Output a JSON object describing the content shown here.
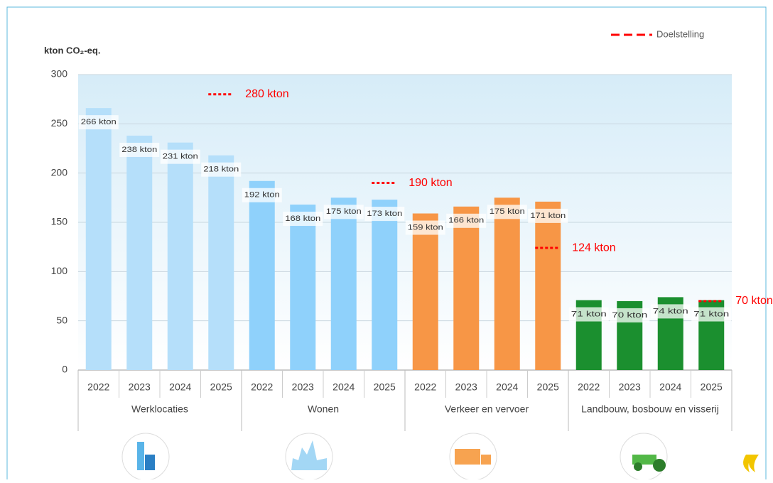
{
  "chart_data": {
    "type": "bar",
    "y_axis_title": "kton CO₂-eq.",
    "legend_label": "Doelstelling",
    "target_color": "#ff0000",
    "categories": [
      "2022",
      "2023",
      "2024",
      "2025"
    ],
    "ylim": [
      0,
      300
    ],
    "yticks": [
      0,
      50,
      100,
      150,
      200,
      250,
      300
    ],
    "grid": true,
    "series": [
      {
        "name": "Werklocaties",
        "color": "#b5dffa",
        "values": [
          266,
          238,
          231,
          218
        ],
        "value_labels": [
          "266 kton",
          "238 kton",
          "231 kton",
          "218 kton"
        ],
        "target": 280,
        "target_label": "280 kton"
      },
      {
        "name": "Wonen",
        "color": "#8fd1fb",
        "values": [
          192,
          168,
          175,
          173
        ],
        "value_labels": [
          "192 kton",
          "168 kton",
          "175 kton",
          "173 kton"
        ],
        "target": 190,
        "target_label": "190 kton"
      },
      {
        "name": "Verkeer en vervoer",
        "color": "#f79646",
        "values": [
          159,
          166,
          175,
          171
        ],
        "value_labels": [
          "159 kton",
          "166 kton",
          "175 kton",
          "171 kton"
        ],
        "target": 124,
        "target_label": "124 kton"
      },
      {
        "name": "Landbouw, bosbouw en visserij",
        "color": "#1b8f2f",
        "values": [
          71,
          70,
          74,
          71
        ],
        "value_labels": [
          "71 kton",
          "70 kton",
          "74 kton",
          "71 kton"
        ],
        "target": 70,
        "target_label": "70 kton"
      }
    ]
  }
}
